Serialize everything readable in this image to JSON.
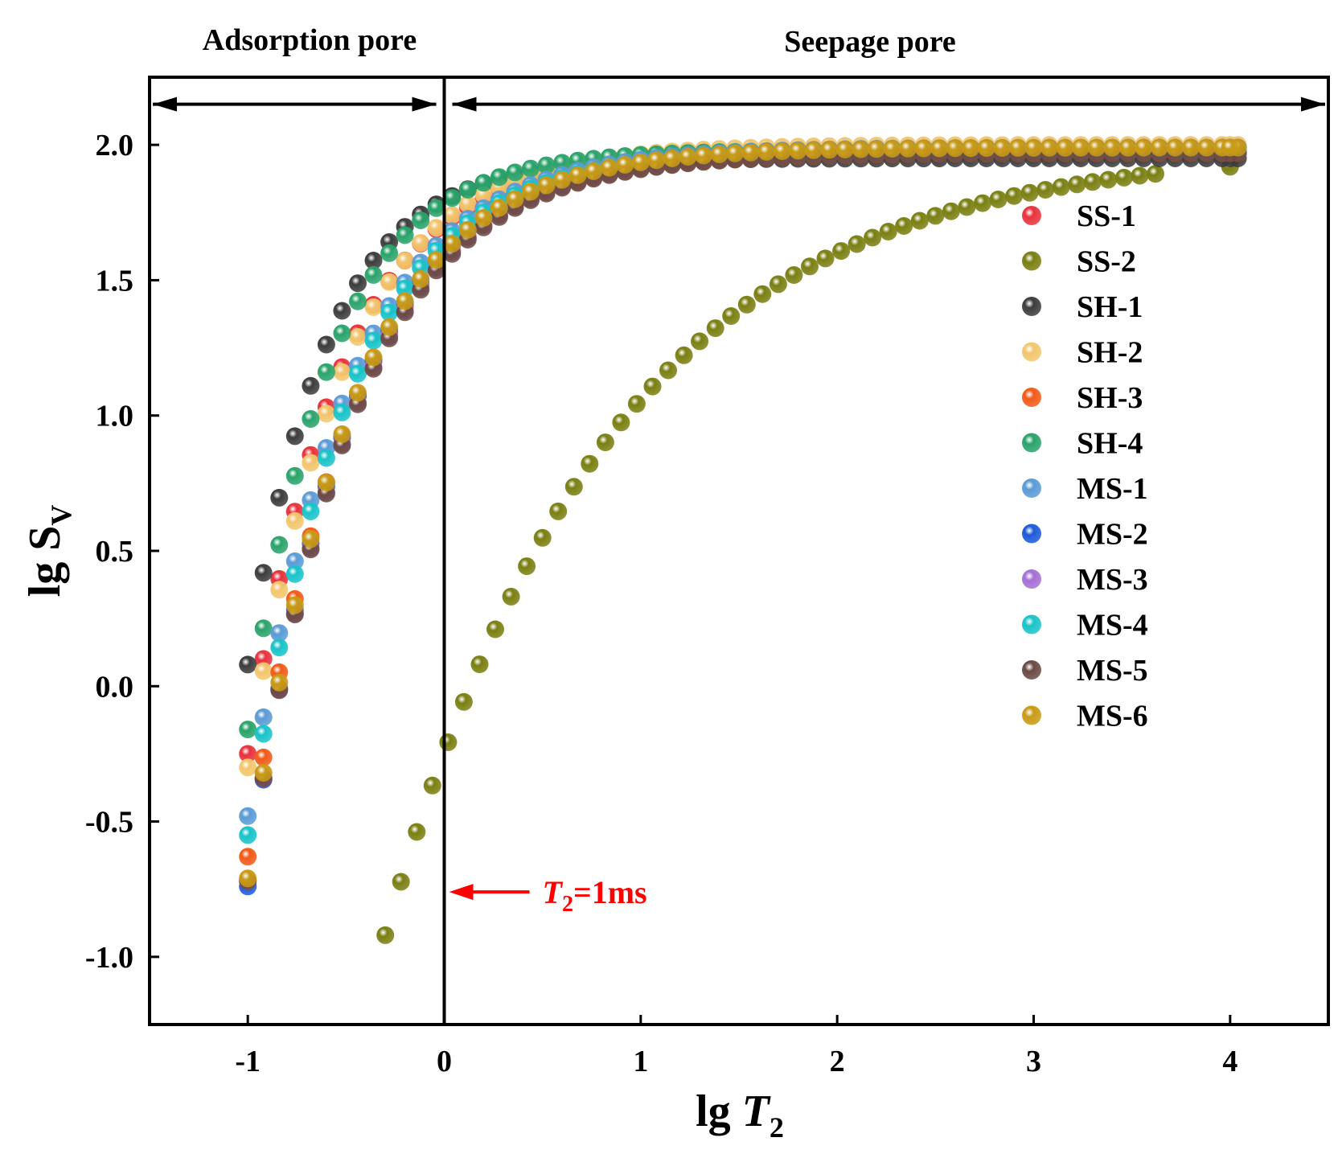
{
  "chart_data": {
    "type": "scatter",
    "title": "",
    "xlabel": {
      "prefix": "lg ",
      "var": "T",
      "sub": "2"
    },
    "ylabel": {
      "prefix": "lg S",
      "sub": "V"
    },
    "xlim": [
      -1.5,
      4.5
    ],
    "ylim": [
      -1.25,
      2.25
    ],
    "xticks": [
      {
        "value": -1,
        "label": "-1"
      },
      {
        "value": 0,
        "label": "0"
      },
      {
        "value": 1,
        "label": "1"
      },
      {
        "value": 2,
        "label": "2"
      },
      {
        "value": 3,
        "label": "3"
      },
      {
        "value": 4,
        "label": "4"
      }
    ],
    "yticks": [
      {
        "value": -1.0,
        "label": "-1.0"
      },
      {
        "value": -0.5,
        "label": "-0.5"
      },
      {
        "value": 0.0,
        "label": "0.0"
      },
      {
        "value": 0.5,
        "label": "0.5"
      },
      {
        "value": 1.0,
        "label": "1.0"
      },
      {
        "value": 1.5,
        "label": "1.5"
      },
      {
        "value": 2.0,
        "label": "2.0"
      }
    ],
    "regions": [
      {
        "label": "Adsorption pore",
        "x_start": -1.5,
        "x_end": 0
      },
      {
        "label": "Seepage pore",
        "x_start": 0,
        "x_end": 4.5
      }
    ],
    "arrow_level_y": 2.15,
    "vertical_line_x": 0,
    "annotation": {
      "var": "T",
      "sub": "2",
      "text": "=1ms",
      "x": 0,
      "y": -0.76,
      "color": "#ff0000"
    },
    "legend_position": "upper-right",
    "series": [
      {
        "name": "SS-1",
        "color": "#e8323c",
        "x0": -1.0,
        "dx": 0.08,
        "end_x": 4.0,
        "n": 64,
        "y0": -0.25,
        "plateau": 1.97,
        "k": 2.15
      },
      {
        "name": "SS-2",
        "color": "#7a7f12",
        "x0": -0.3,
        "dx": 0.08,
        "end_x": 4.0,
        "n": 50,
        "y0": -0.92,
        "plateau": 1.985,
        "k": 0.88
      },
      {
        "name": "SH-1",
        "color": "#3c3c3c",
        "x0": -1.0,
        "dx": 0.08,
        "end_x": 4.0,
        "n": 64,
        "y0": 0.08,
        "plateau": 1.95,
        "k": 2.5
      },
      {
        "name": "SH-2",
        "color": "#f2c66d",
        "x0": -1.0,
        "dx": 0.08,
        "end_x": 4.0,
        "n": 64,
        "y0": -0.3,
        "plateau": 2.0,
        "k": 2.1
      },
      {
        "name": "SH-3",
        "color": "#f25a18",
        "x0": -1.0,
        "dx": 0.08,
        "end_x": 4.0,
        "n": 64,
        "y0": -0.63,
        "plateau": 1.97,
        "k": 1.9
      },
      {
        "name": "SH-4",
        "color": "#2aa36b",
        "x0": -1.0,
        "dx": 0.08,
        "end_x": 4.0,
        "n": 64,
        "y0": -0.16,
        "plateau": 1.98,
        "k": 2.4
      },
      {
        "name": "MS-1",
        "color": "#5b9bd5",
        "x0": -1.0,
        "dx": 0.08,
        "end_x": 4.0,
        "n": 64,
        "y0": -0.48,
        "plateau": 1.99,
        "k": 2.0
      },
      {
        "name": "MS-2",
        "color": "#1f5ad8",
        "x0": -1.0,
        "dx": 0.08,
        "end_x": 4.0,
        "n": 64,
        "y0": -0.74,
        "plateau": 1.99,
        "k": 1.95
      },
      {
        "name": "MS-3",
        "color": "#a56fd6",
        "x0": -1.0,
        "dx": 0.08,
        "end_x": 4.0,
        "n": 64,
        "y0": -0.72,
        "plateau": 1.98,
        "k": 1.9
      },
      {
        "name": "MS-4",
        "color": "#19c3c9",
        "x0": -1.0,
        "dx": 0.08,
        "end_x": 4.0,
        "n": 64,
        "y0": -0.55,
        "plateau": 1.98,
        "k": 2.0
      },
      {
        "name": "MS-5",
        "color": "#6b4a44",
        "x0": -1.0,
        "dx": 0.08,
        "end_x": 4.0,
        "n": 64,
        "y0": -0.72,
        "plateau": 1.97,
        "k": 1.9
      },
      {
        "name": "MS-6",
        "color": "#c99a16",
        "x0": -1.0,
        "dx": 0.08,
        "end_x": 4.0,
        "n": 64,
        "y0": -0.71,
        "plateau": 1.99,
        "k": 1.95
      }
    ]
  }
}
